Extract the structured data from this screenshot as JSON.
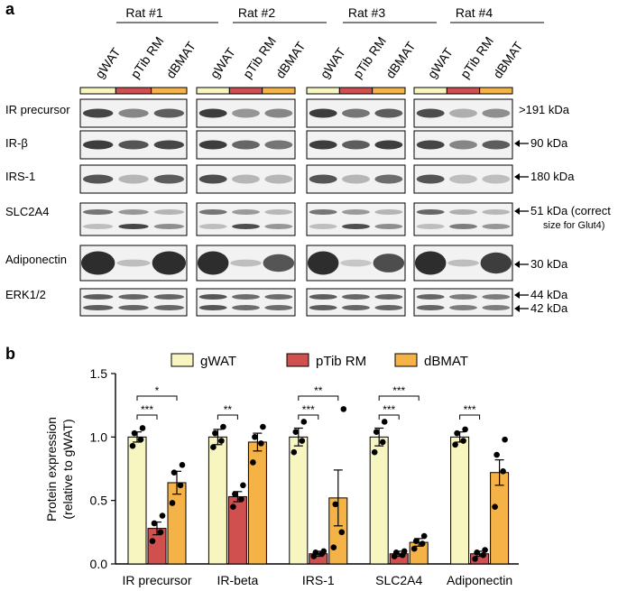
{
  "panel_a": {
    "label": "a",
    "rats": [
      "Rat #1",
      "Rat #2",
      "Rat #3",
      "Rat #4"
    ],
    "lanes": [
      "gWAT",
      "pTib RM",
      "dBMAT"
    ],
    "rows": [
      {
        "name": "IR precursor",
        "size": ">191 kDa",
        "arrow": false
      },
      {
        "name": "IR-β",
        "size": "90 kDa",
        "arrow": true
      },
      {
        "name": "IRS-1",
        "size": "180 kDa",
        "arrow": true
      },
      {
        "name": "SLC2A4",
        "size": "51 kDa (correct",
        "size2": "size for Glut4)",
        "arrow": true
      },
      {
        "name": "Adiponectin",
        "size": "30 kDa",
        "arrow": true
      },
      {
        "name": "ERK1/2",
        "size": "44 kDa",
        "size_b": "42 kDa",
        "arrow": true
      }
    ]
  },
  "colors": {
    "gWAT": "#f7f5c0",
    "pTib RM": "#d05050",
    "dBMAT": "#f5b247"
  },
  "chart_data": {
    "label": "b",
    "type": "bar",
    "categories": [
      "IR precursor",
      "IR-beta",
      "IRS-1",
      "SLC2A4",
      "Adiponectin"
    ],
    "series": [
      {
        "name": "gWAT",
        "values": [
          1.0,
          1.0,
          1.0,
          1.0,
          1.0
        ],
        "errors": [
          0.04,
          0.06,
          0.07,
          0.07,
          0.04
        ],
        "points": [
          [
            0.93,
            0.98,
            1.03,
            1.07
          ],
          [
            0.92,
            0.97,
            1.03,
            1.08
          ],
          [
            0.88,
            0.97,
            1.04,
            1.12
          ],
          [
            0.88,
            0.96,
            1.04,
            1.12
          ],
          [
            0.94,
            0.97,
            1.03,
            1.06
          ]
        ]
      },
      {
        "name": "pTib RM",
        "values": [
          0.28,
          0.53,
          0.08,
          0.08,
          0.08
        ],
        "errors": [
          0.05,
          0.04,
          0.02,
          0.02,
          0.02
        ],
        "points": [
          [
            0.18,
            0.25,
            0.32,
            0.38
          ],
          [
            0.45,
            0.51,
            0.55,
            0.62
          ],
          [
            0.06,
            0.08,
            0.09,
            0.1
          ],
          [
            0.06,
            0.07,
            0.09,
            0.1
          ],
          [
            0.04,
            0.07,
            0.09,
            0.11
          ]
        ]
      },
      {
        "name": "dBMAT",
        "values": [
          0.64,
          0.96,
          0.52,
          0.17,
          0.72
        ],
        "errors": [
          0.09,
          0.07,
          0.22,
          0.03,
          0.1
        ],
        "points": [
          [
            0.48,
            0.62,
            0.72,
            0.78
          ],
          [
            0.8,
            0.95,
            1.0,
            1.08
          ],
          [
            0.13,
            0.25,
            0.47,
            1.22
          ],
          [
            0.12,
            0.16,
            0.18,
            0.22
          ],
          [
            0.45,
            0.73,
            0.86,
            0.98
          ]
        ]
      }
    ],
    "ylabel": "Protein expression",
    "ylabel2": "(relative to gWAT)",
    "ylim": [
      0,
      1.5
    ],
    "yticks": [
      "0.0",
      "0.5",
      "1.0",
      "1.5"
    ],
    "legend": "top",
    "significance": [
      {
        "cat": 0,
        "pair": [
          0,
          1
        ],
        "text": "***",
        "level": 0
      },
      {
        "cat": 0,
        "pair": [
          0,
          2
        ],
        "text": "*",
        "level": 1
      },
      {
        "cat": 1,
        "pair": [
          0,
          1
        ],
        "text": "**",
        "level": 0
      },
      {
        "cat": 2,
        "pair": [
          0,
          1
        ],
        "text": "***",
        "level": 0
      },
      {
        "cat": 2,
        "pair": [
          0,
          2
        ],
        "text": "**",
        "level": 1
      },
      {
        "cat": 3,
        "pair": [
          0,
          1
        ],
        "text": "***",
        "level": 0
      },
      {
        "cat": 3,
        "pair": [
          0,
          2
        ],
        "text": "***",
        "level": 1
      },
      {
        "cat": 4,
        "pair": [
          0,
          1
        ],
        "text": "***",
        "level": 0
      }
    ]
  }
}
